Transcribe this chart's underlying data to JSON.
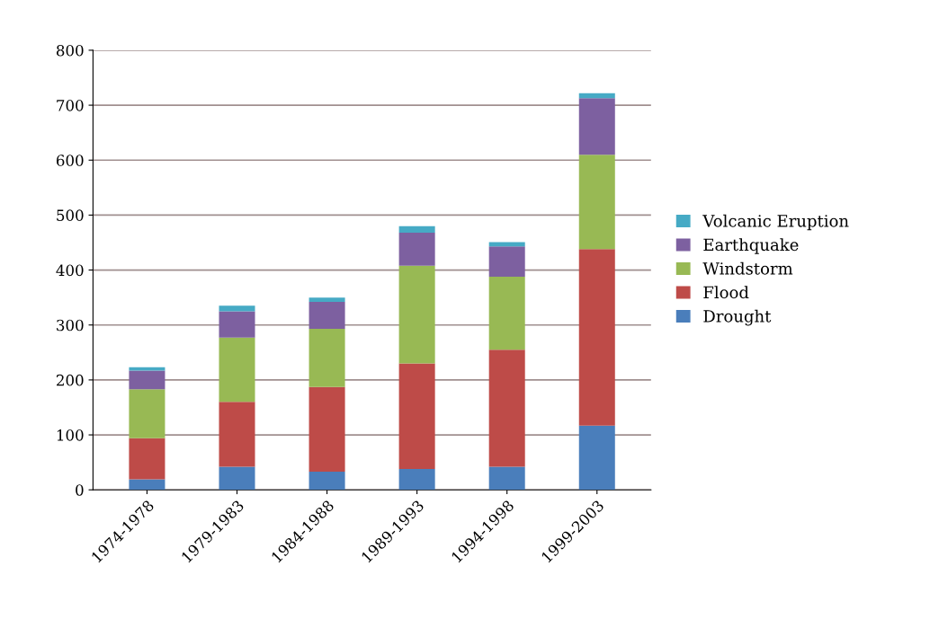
{
  "chart_data": {
    "type": "bar",
    "stacked": true,
    "categories": [
      "1974-1978",
      "1979-1983",
      "1984-1988",
      "1989-1993",
      "1994-1998",
      "1999-2003"
    ],
    "series": [
      {
        "name": "Drought",
        "color": "#4a7ebb",
        "values": [
          19,
          42,
          33,
          38,
          42,
          117
        ]
      },
      {
        "name": "Flood",
        "color": "#be4b48",
        "values": [
          75,
          118,
          154,
          192,
          213,
          321
        ]
      },
      {
        "name": "Windstorm",
        "color": "#98b954",
        "values": [
          89,
          117,
          106,
          178,
          133,
          172
        ]
      },
      {
        "name": "Earthquake",
        "color": "#7d60a0",
        "values": [
          34,
          48,
          49,
          60,
          55,
          103
        ]
      },
      {
        "name": "Volcanic Eruption",
        "color": "#46aac5",
        "values": [
          6,
          10,
          8,
          12,
          8,
          9
        ]
      }
    ],
    "ylim": [
      0,
      800
    ],
    "yticks": [
      0,
      100,
      200,
      300,
      400,
      500,
      600,
      700,
      800
    ],
    "grid": "y",
    "legend": "right"
  }
}
